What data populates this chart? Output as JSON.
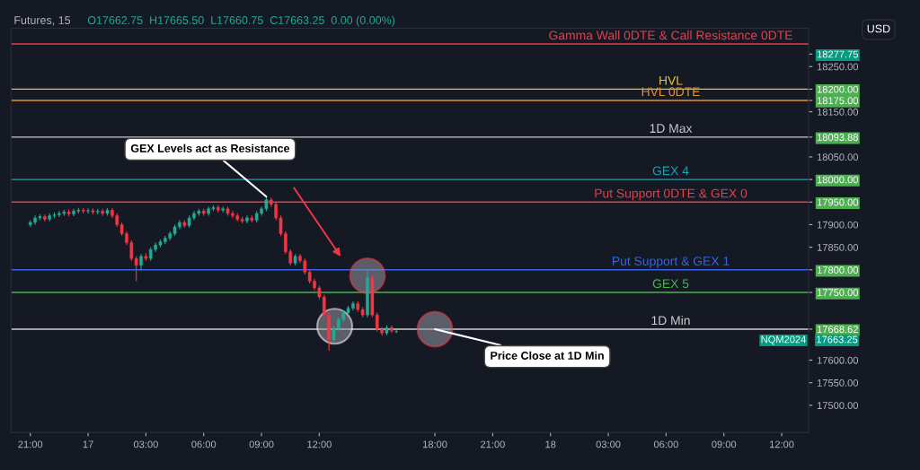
{
  "chart_data": {
    "type": "candlestick",
    "title": "Futures, 15",
    "subtitle": "O17662.75  H17665.50  L17660.75  C17663.25  0.00 (0.00%)",
    "x": [
      "2024-04-16T21:00",
      "2024-04-16T21:15",
      "2024-04-16T21:30",
      "2024-04-16T21:45",
      "2024-04-16T22:00",
      "2024-04-16T22:15",
      "2024-04-16T22:30",
      "2024-04-16T22:45",
      "2024-04-16T23:00",
      "2024-04-16T23:15",
      "2024-04-16T23:30",
      "2024-04-16T23:45",
      "2024-04-17T00:00",
      "2024-04-17T00:15",
      "2024-04-17T00:30",
      "2024-04-17T00:45",
      "2024-04-17T01:00",
      "2024-04-17T01:15",
      "2024-04-17T01:30",
      "2024-04-17T01:45",
      "2024-04-17T02:00",
      "2024-04-17T02:15",
      "2024-04-17T02:30",
      "2024-04-17T02:45",
      "2024-04-17T03:00",
      "2024-04-17T03:15",
      "2024-04-17T03:30",
      "2024-04-17T03:45",
      "2024-04-17T04:00",
      "2024-04-17T04:15",
      "2024-04-17T04:30",
      "2024-04-17T04:45",
      "2024-04-17T05:00",
      "2024-04-17T05:15",
      "2024-04-17T05:30",
      "2024-04-17T05:45",
      "2024-04-17T06:00",
      "2024-04-17T06:15",
      "2024-04-17T06:30",
      "2024-04-17T06:45",
      "2024-04-17T07:00",
      "2024-04-17T07:15",
      "2024-04-17T07:30",
      "2024-04-17T07:45",
      "2024-04-17T08:00",
      "2024-04-17T08:15",
      "2024-04-17T08:30",
      "2024-04-17T08:45",
      "2024-04-17T09:00",
      "2024-04-17T09:15",
      "2024-04-17T09:30",
      "2024-04-17T09:45",
      "2024-04-17T10:00",
      "2024-04-17T10:15",
      "2024-04-17T10:30",
      "2024-04-17T10:45",
      "2024-04-17T11:00",
      "2024-04-17T11:15",
      "2024-04-17T11:30",
      "2024-04-17T11:45",
      "2024-04-17T12:00",
      "2024-04-17T12:15",
      "2024-04-17T12:30",
      "2024-04-17T12:45",
      "2024-04-17T13:00",
      "2024-04-17T13:15",
      "2024-04-17T13:30",
      "2024-04-17T13:45",
      "2024-04-17T14:00",
      "2024-04-17T14:15",
      "2024-04-17T14:30",
      "2024-04-17T14:45",
      "2024-04-17T15:00",
      "2024-04-17T15:15",
      "2024-04-17T15:30",
      "2024-04-17T15:45",
      "2024-04-17T16:00"
    ],
    "ohlc": [
      [
        17900,
        17909,
        17896,
        17905
      ],
      [
        17905,
        17919,
        17901,
        17915
      ],
      [
        17915,
        17922,
        17911,
        17918
      ],
      [
        17918,
        17922,
        17908,
        17912
      ],
      [
        17912,
        17924,
        17908,
        17920
      ],
      [
        17920,
        17926,
        17916,
        17922
      ],
      [
        17922,
        17929,
        17918,
        17925
      ],
      [
        17925,
        17932,
        17921,
        17928
      ],
      [
        17928,
        17932,
        17920,
        17924
      ],
      [
        17924,
        17934,
        17920,
        17930
      ],
      [
        17930,
        17936,
        17926,
        17932
      ],
      [
        17932,
        17936,
        17926,
        17930
      ],
      [
        17930,
        17935,
        17926,
        17931
      ],
      [
        17931,
        17935,
        17924,
        17928
      ],
      [
        17928,
        17934,
        17924,
        17930
      ],
      [
        17930,
        17934,
        17921,
        17925
      ],
      [
        17925,
        17936,
        17921,
        17932
      ],
      [
        17932,
        17936,
        17916,
        17920
      ],
      [
        17920,
        17924,
        17896,
        17900
      ],
      [
        17900,
        17904,
        17876,
        17880
      ],
      [
        17880,
        17884,
        17856,
        17860
      ],
      [
        17860,
        17864,
        17821,
        17825
      ],
      [
        17825,
        17829,
        17776,
        17810
      ],
      [
        17810,
        17834,
        17800,
        17830
      ],
      [
        17830,
        17836,
        17821,
        17825
      ],
      [
        17825,
        17849,
        17821,
        17845
      ],
      [
        17845,
        17859,
        17841,
        17855
      ],
      [
        17855,
        17866,
        17851,
        17862
      ],
      [
        17862,
        17874,
        17858,
        17870
      ],
      [
        17870,
        17884,
        17866,
        17880
      ],
      [
        17880,
        17899,
        17876,
        17895
      ],
      [
        17895,
        17909,
        17891,
        17905
      ],
      [
        17905,
        17909,
        17894,
        17898
      ],
      [
        17898,
        17919,
        17894,
        17915
      ],
      [
        17915,
        17929,
        17911,
        17925
      ],
      [
        17925,
        17934,
        17921,
        17930
      ],
      [
        17930,
        17934,
        17921,
        17925
      ],
      [
        17925,
        17939,
        17921,
        17935
      ],
      [
        17935,
        17942,
        17931,
        17938
      ],
      [
        17938,
        17942,
        17928,
        17932
      ],
      [
        17932,
        17939,
        17928,
        17935
      ],
      [
        17935,
        17939,
        17921,
        17925
      ],
      [
        17925,
        17929,
        17916,
        17920
      ],
      [
        17920,
        17924,
        17908,
        17912
      ],
      [
        17912,
        17916,
        17904,
        17908
      ],
      [
        17908,
        17919,
        17904,
        17915
      ],
      [
        17915,
        17919,
        17906,
        17910
      ],
      [
        17910,
        17929,
        17906,
        17925
      ],
      [
        17925,
        17939,
        17921,
        17935
      ],
      [
        17935,
        17962,
        17931,
        17955
      ],
      [
        17955,
        17959,
        17941,
        17945
      ],
      [
        17945,
        17949,
        17911,
        17915
      ],
      [
        17915,
        17919,
        17876,
        17880
      ],
      [
        17880,
        17884,
        17836,
        17840
      ],
      [
        17840,
        17844,
        17811,
        17815
      ],
      [
        17815,
        17834,
        17811,
        17830
      ],
      [
        17830,
        17834,
        17816,
        17820
      ],
      [
        17820,
        17824,
        17791,
        17795
      ],
      [
        17795,
        17799,
        17771,
        17775
      ],
      [
        17775,
        17779,
        17756,
        17760
      ],
      [
        17760,
        17764,
        17736,
        17740
      ],
      [
        17740,
        17744,
        17696,
        17700
      ],
      [
        17700,
        17704,
        17622,
        17645
      ],
      [
        17645,
        17674,
        17638,
        17670
      ],
      [
        17670,
        17694,
        17666,
        17690
      ],
      [
        17690,
        17709,
        17686,
        17705
      ],
      [
        17705,
        17719,
        17701,
        17715
      ],
      [
        17715,
        17729,
        17711,
        17725
      ],
      [
        17725,
        17729,
        17708,
        17712
      ],
      [
        17712,
        17716,
        17696,
        17700
      ],
      [
        17700,
        17795,
        17696,
        17782
      ],
      [
        17782,
        17786,
        17696,
        17700
      ],
      [
        17700,
        17704,
        17664,
        17668
      ],
      [
        17668,
        17672,
        17656,
        17660
      ],
      [
        17660,
        17676,
        17656,
        17672
      ],
      [
        17672,
        17676,
        17661,
        17665
      ],
      [
        17662.75,
        17665.5,
        17660.75,
        17663.25
      ]
    ],
    "colors": [
      "#22ab94",
      "#22ab94",
      "#22ab94",
      "#f23645",
      "#22ab94",
      "#22ab94",
      "#22ab94",
      "#22ab94",
      "#f23645",
      "#22ab94",
      "#22ab94",
      "#f23645",
      "#22ab94",
      "#f23645",
      "#22ab94",
      "#f23645",
      "#22ab94",
      "#f23645",
      "#f23645",
      "#f23645",
      "#f23645",
      "#f23645",
      "#f23645",
      "#22ab94",
      "#f23645",
      "#22ab94",
      "#22ab94",
      "#22ab94",
      "#22ab94",
      "#22ab94",
      "#22ab94",
      "#22ab94",
      "#f23645",
      "#22ab94",
      "#22ab94",
      "#22ab94",
      "#f23645",
      "#22ab94",
      "#22ab94",
      "#f23645",
      "#22ab94",
      "#f23645",
      "#f23645",
      "#f23645",
      "#f23645",
      "#22ab94",
      "#f23645",
      "#22ab94",
      "#22ab94",
      "#22ab94",
      "#f23645",
      "#f23645",
      "#f23645",
      "#f23645",
      "#f23645",
      "#22ab94",
      "#f23645",
      "#f23645",
      "#f23645",
      "#f23645",
      "#f23645",
      "#f23645",
      "#f23645",
      "#22ab94",
      "#22ab94",
      "#22ab94",
      "#22ab94",
      "#22ab94",
      "#f23645",
      "#f23645",
      "#22ab94",
      "#f23645",
      "#f23645",
      "#f23645",
      "#22ab94",
      "#f23645",
      "#22ab94"
    ],
    "xlim": [
      "2024-04-16T20:00",
      "2024-04-18T13:24"
    ],
    "xticks": [
      {
        "value": "2024-04-16T21:00",
        "label": "21:00"
      },
      {
        "value": "2024-04-17T00:00",
        "label": "17"
      },
      {
        "value": "2024-04-17T03:00",
        "label": "03:00"
      },
      {
        "value": "2024-04-17T06:00",
        "label": "06:00"
      },
      {
        "value": "2024-04-17T09:00",
        "label": "09:00"
      },
      {
        "value": "2024-04-17T12:00",
        "label": "12:00"
      },
      {
        "value": "2024-04-17T18:00",
        "label": "18:00"
      },
      {
        "value": "2024-04-17T21:00",
        "label": "21:00"
      },
      {
        "value": "2024-04-18T00:00",
        "label": "18"
      },
      {
        "value": "2024-04-18T03:00",
        "label": "03:00"
      },
      {
        "value": "2024-04-18T06:00",
        "label": "06:00"
      },
      {
        "value": "2024-04-18T09:00",
        "label": "09:00"
      },
      {
        "value": "2024-04-18T12:00",
        "label": "12:00"
      }
    ],
    "ylim": [
      17440,
      18335
    ],
    "yticks": [
      {
        "value": 17500,
        "label": "17500.00"
      },
      {
        "value": 17550,
        "label": "17550.00"
      },
      {
        "value": 17600,
        "label": "17600.00"
      },
      {
        "value": 17668.62,
        "label": "17668.62"
      },
      {
        "value": 17750,
        "label": "17750.00"
      },
      {
        "value": 17800,
        "label": "17800.00"
      },
      {
        "value": 17850,
        "label": "17850.00"
      },
      {
        "value": 17900,
        "label": "17900.00"
      },
      {
        "value": 17950,
        "label": "17950.00"
      },
      {
        "value": 18000,
        "label": "18000.00"
      },
      {
        "value": 18050,
        "label": "18050.00"
      },
      {
        "value": 18093.88,
        "label": "18093.88"
      },
      {
        "value": 18150,
        "label": "18150.00"
      },
      {
        "value": 18175,
        "label": "18175.00"
      },
      {
        "value": 18200,
        "label": "18200.00"
      },
      {
        "value": 18250,
        "label": "18250.00"
      },
      {
        "value": 18277.75,
        "label": "18277.75"
      }
    ],
    "ref_lines": [
      {
        "axis": "y",
        "value": 18300,
        "label": "Gamma Wall 0DTE & Call Resistance 0DTE",
        "color": "#e0414c"
      },
      {
        "axis": "y",
        "value": 18200,
        "label": "HVL",
        "color": "#e3c23a"
      },
      {
        "axis": "y",
        "value": 18175,
        "label": "HVL 0DTE",
        "color": "#e8912e"
      },
      {
        "axis": "y",
        "value": 18093.88,
        "label": "1D Max",
        "color": "#c8c8c8"
      },
      {
        "axis": "y",
        "value": 18000,
        "label": "GEX 4",
        "color": "#1f9fb0"
      },
      {
        "axis": "y",
        "value": 17950,
        "label": "Put Support 0DTE & GEX 0",
        "color": "#e0414c"
      },
      {
        "axis": "y",
        "value": 17800,
        "label": "Put Support & GEX 1",
        "color": "#3563e9"
      },
      {
        "axis": "y",
        "value": 17750,
        "label": "GEX 5",
        "color": "#4caf50"
      },
      {
        "axis": "y",
        "value": 17668.62,
        "label": "1D Min",
        "color": "#d0d0d0"
      }
    ],
    "annotations": [
      {
        "text": "GEX Levels act as Resistance",
        "x": "2024-04-17T09:15",
        "y": 17962
      },
      {
        "text": "Price Close at 1D Min",
        "x": "2024-04-17T18:00",
        "y": 17668.62
      },
      "NQM2024",
      "USD",
      "17663.25"
    ],
    "grid": false,
    "legend": false
  }
}
